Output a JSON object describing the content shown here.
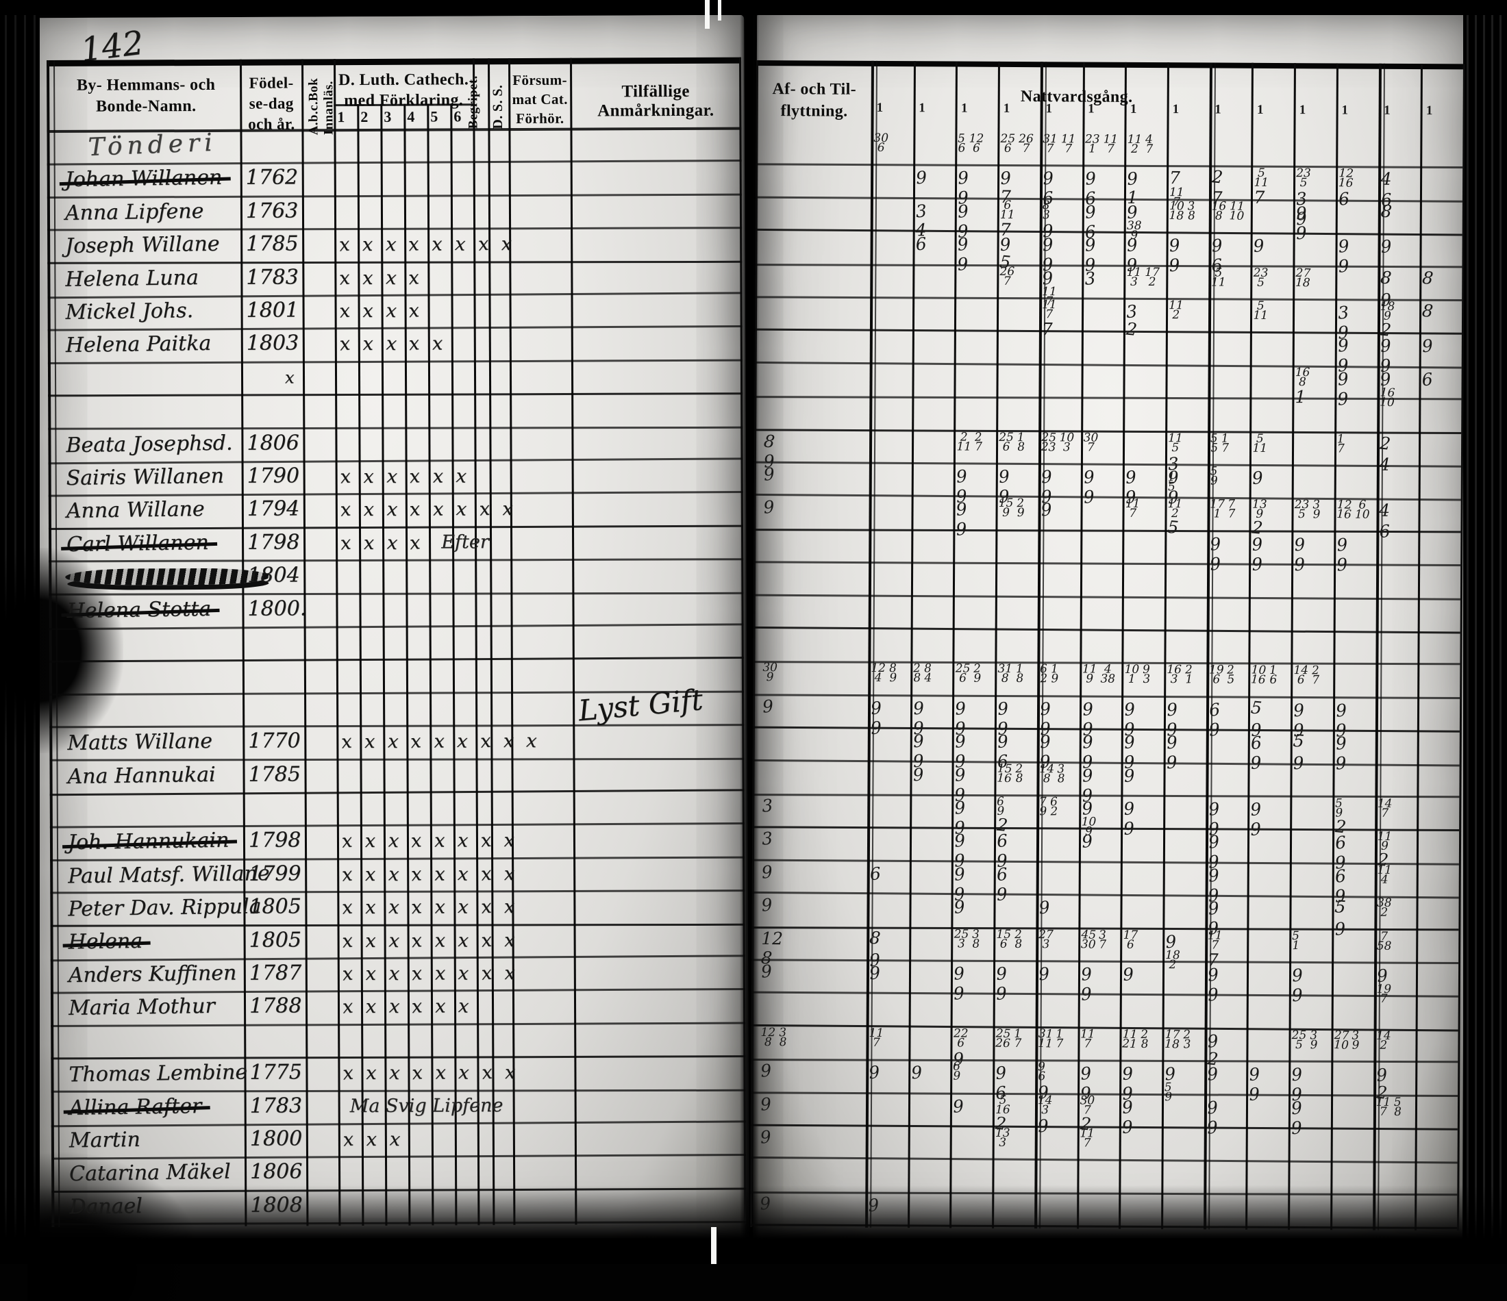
{
  "left_page": {
    "page_number": "142",
    "village_header": "Tönderi",
    "columns": {
      "names_line1": "By- Hemmans- och",
      "names_line2": "Bonde-Namn.",
      "birth_line1": "Födel-",
      "birth_line2": "se-dag",
      "birth_line3": "och år.",
      "abc_line1": "A.b.c.Bok",
      "abc_line2": "Innanläs.",
      "catechism_line1": "D. Luth. Cathech.",
      "catechism_line2": "med Förklaring.",
      "begripet": "Begripet.",
      "dss": "D. S. S.",
      "forsummat_line1": "Försum-",
      "forsummat_line2": "mat Cat.",
      "forsummat_line3": "Förhör.",
      "remarks": "Tilfällige Anmårkningar."
    },
    "catechism_subcolumns": [
      "1",
      "2",
      "3",
      "4",
      "5",
      "6"
    ],
    "rows": [
      {
        "village": "Tönderi"
      },
      {
        "name": "Johan Willanen",
        "year": "1762",
        "struck": true
      },
      {
        "name": "Anna Lipfene",
        "year": "1763"
      },
      {
        "name": "Joseph Willane",
        "year": "1785",
        "x": 8
      },
      {
        "name": "Helena Luna",
        "year": "1783",
        "x": 4
      },
      {
        "name": "Mickel Johs.",
        "year": "1801",
        "x": 4
      },
      {
        "name": "Helena Paitka",
        "year": "1803",
        "x": 5
      },
      {
        "year_mark": "x"
      },
      {},
      {
        "name": "Beata Josephsd.",
        "year": "1806"
      },
      {
        "name": "Sairis Willanen",
        "year": "1790",
        "x": 6
      },
      {
        "name": "Anna Willane",
        "year": "1794",
        "x": 8
      },
      {
        "name": "Carl Willanen",
        "year": "1798",
        "struck": true,
        "x": 4,
        "note": "Efter"
      },
      {
        "scribble": true,
        "year": "1804"
      },
      {
        "name": "Helena Stotta",
        "year": "1800.",
        "struck": true
      },
      {},
      {},
      {
        "remark": "Lyst Gift"
      },
      {
        "name": "Matts Willane",
        "year": "1770",
        "x": 9
      },
      {
        "name": "Ana Hannukai",
        "year": "1785"
      },
      {},
      {
        "name": "Joh. Hannukain",
        "year": "1798",
        "struck": true,
        "x": 8
      },
      {
        "name": "Paul Matsf. Willane",
        "year": "1799",
        "x": 8
      },
      {
        "name": "Peter Dav. Rippula",
        "year": "1805",
        "x": 8
      },
      {
        "name": "Helena",
        "year": "1805",
        "struck": true,
        "x": 8
      },
      {
        "name": "Anders Kuffinen",
        "year": "1787",
        "x": 8
      },
      {
        "name": "Maria Mothur",
        "year": "1788",
        "x": 6
      },
      {},
      {
        "name": "Thomas Lembine",
        "year": "1775",
        "x": 8
      },
      {
        "name": "Allina Rafter",
        "year": "1783",
        "struck": true,
        "note": "Ma Svig Lipfene"
      },
      {
        "name": "Martin",
        "year": "1800",
        "x": 3
      },
      {
        "name": "Catarina Mäkel",
        "year": "1806"
      },
      {
        "name": "Danael",
        "year": "1808"
      }
    ]
  },
  "right_page": {
    "moves_line1": "Af- och Til-",
    "moves_line2": "flyttning.",
    "communion": "Nattvardsgång.",
    "column_tick": "1",
    "rows": [
      {
        "cells": [
          [
            0,
            "30/6"
          ],
          [
            2,
            "5/6 12/6"
          ],
          [
            3,
            "25/6 26/7"
          ],
          [
            4,
            "31/7 11/7"
          ],
          [
            5,
            "23/1 11/7"
          ],
          [
            6,
            "11/2 4/7"
          ]
        ]
      },
      {
        "cells": [
          [
            1,
            "9"
          ],
          [
            2,
            "9 9"
          ],
          [
            3,
            "9 7"
          ],
          [
            4,
            "9 6"
          ],
          [
            5,
            "9 6"
          ],
          [
            6,
            "9 1"
          ],
          [
            7,
            "7 11/7"
          ],
          [
            8,
            "2 7"
          ],
          [
            9,
            "5/11 7"
          ],
          [
            10,
            "23/5 3 9"
          ],
          [
            11,
            "12/16 6"
          ],
          [
            12,
            "4 6"
          ]
        ]
      },
      {
        "cells": [
          [
            1,
            "3 4"
          ],
          [
            2,
            "9 9"
          ],
          [
            3,
            "6/11 7"
          ],
          [
            4,
            "8/3 9"
          ],
          [
            5,
            "9 6"
          ],
          [
            6,
            "9 38/9"
          ],
          [
            7,
            "10/18 3/8"
          ],
          [
            8,
            "16/8 11/10"
          ],
          [
            10,
            "9 9"
          ],
          [
            12,
            "8"
          ]
        ]
      },
      {
        "cells": [
          [
            1,
            "6"
          ],
          [
            2,
            "9 9"
          ],
          [
            3,
            "9 5"
          ],
          [
            4,
            "9 9"
          ],
          [
            5,
            "9 9"
          ],
          [
            6,
            "9 9"
          ],
          [
            7,
            "9 9"
          ],
          [
            8,
            "9 6"
          ],
          [
            9,
            "9"
          ],
          [
            11,
            "9 9"
          ],
          [
            12,
            "9"
          ]
        ]
      },
      {
        "cells": [
          [
            3,
            "26/7"
          ],
          [
            4,
            "9 11/7"
          ],
          [
            5,
            "3"
          ],
          [
            6,
            "11/3 17/2"
          ],
          [
            8,
            "5/11"
          ],
          [
            9,
            "23/5"
          ],
          [
            10,
            "27/18"
          ],
          [
            12,
            "8 9"
          ],
          [
            13,
            "8"
          ]
        ]
      },
      {
        "cells": [
          [
            4,
            "11/7 7"
          ],
          [
            6,
            "3 2"
          ],
          [
            7,
            "11/2"
          ],
          [
            9,
            "5/11"
          ],
          [
            11,
            "3 9"
          ],
          [
            12,
            "18/9 2"
          ],
          [
            13,
            "8"
          ]
        ]
      },
      {
        "cells": [
          [
            11,
            "9 9"
          ],
          [
            12,
            "9 9"
          ],
          [
            13,
            "9"
          ]
        ]
      },
      {
        "cells": [
          [
            10,
            "16/8 1"
          ],
          [
            11,
            "9 9"
          ],
          [
            12,
            "9 16/10"
          ],
          [
            13,
            "6"
          ]
        ]
      },
      {
        "cells": []
      },
      {
        "af": "8 9",
        "cells": [
          [
            2,
            "2/11 2/7"
          ],
          [
            3,
            "25/6 1/8"
          ],
          [
            4,
            "25/23 10/3"
          ],
          [
            5,
            "30/7"
          ],
          [
            7,
            "11/5 3 1/5"
          ],
          [
            8,
            "5/5 1/7"
          ],
          [
            9,
            "5/11"
          ],
          [
            11,
            "1/7"
          ],
          [
            12,
            "2 4"
          ]
        ]
      },
      {
        "af": "9",
        "cells": [
          [
            2,
            "9 9"
          ],
          [
            3,
            "9 9"
          ],
          [
            4,
            "9 9"
          ],
          [
            5,
            "9 9"
          ],
          [
            6,
            "9 9"
          ],
          [
            7,
            "9 9"
          ],
          [
            8,
            "5/9"
          ],
          [
            9,
            "9"
          ]
        ]
      },
      {
        "af": "9",
        "cells": [
          [
            2,
            "9 9"
          ],
          [
            3,
            "15/9 2/9"
          ],
          [
            4,
            "9"
          ],
          [
            6,
            "11/7"
          ],
          [
            7,
            "11/2 5"
          ],
          [
            8,
            "17/1 7/7"
          ],
          [
            9,
            "13/9 2"
          ],
          [
            10,
            "23/5 3/9"
          ],
          [
            11,
            "12/16 6/10"
          ],
          [
            12,
            "4 6"
          ]
        ]
      },
      {
        "cells": [
          [
            8,
            "9 9"
          ],
          [
            9,
            "9 9"
          ],
          [
            10,
            "9 9"
          ],
          [
            11,
            "9 9"
          ]
        ]
      },
      {
        "cells": []
      },
      {
        "cells": []
      },
      {
        "cells": []
      },
      {
        "af": "30/9",
        "cells": [
          [
            0,
            "12/4 8/9"
          ],
          [
            1,
            "2/8 8/4"
          ],
          [
            2,
            "25/6 2/9"
          ],
          [
            3,
            "31/8 1/8"
          ],
          [
            4,
            "6/2 1/9"
          ],
          [
            5,
            "11/9 4/38"
          ],
          [
            6,
            "10/1 9/3"
          ],
          [
            7,
            "16/3 2/1"
          ],
          [
            8,
            "19/6 2/5"
          ],
          [
            9,
            "10/16 1/6"
          ],
          [
            10,
            "14/6 2/7"
          ]
        ]
      },
      {
        "af": "9",
        "cells": [
          [
            0,
            "9 9"
          ],
          [
            1,
            "9 9"
          ],
          [
            2,
            "9 9"
          ],
          [
            3,
            "9 9"
          ],
          [
            4,
            "9 9"
          ],
          [
            5,
            "9 9"
          ],
          [
            6,
            "9 9"
          ],
          [
            7,
            "9 9"
          ],
          [
            8,
            "6 9"
          ],
          [
            9,
            "5 9"
          ],
          [
            10,
            "9 9"
          ],
          [
            11,
            "9 9"
          ]
        ]
      },
      {
        "cells": [
          [
            1,
            "9 9"
          ],
          [
            2,
            "9 9"
          ],
          [
            3,
            "9 6"
          ],
          [
            4,
            "9 9"
          ],
          [
            5,
            "9 9"
          ],
          [
            6,
            "9 9"
          ],
          [
            7,
            "9 9"
          ],
          [
            9,
            "6 9"
          ],
          [
            10,
            "5 9"
          ],
          [
            11,
            "9 9"
          ]
        ]
      },
      {
        "cells": [
          [
            1,
            "9"
          ],
          [
            2,
            "9 9"
          ],
          [
            3,
            "15/16 2/8"
          ],
          [
            4,
            "14/8 3/8"
          ],
          [
            5,
            "9 9"
          ],
          [
            6,
            "9"
          ]
        ]
      },
      {
        "af": "3",
        "cells": [
          [
            2,
            "9 9"
          ],
          [
            3,
            "6/9 2"
          ],
          [
            4,
            "7/9 6/2"
          ],
          [
            5,
            "9 10/9"
          ],
          [
            6,
            "9 9"
          ],
          [
            8,
            "9 9"
          ],
          [
            9,
            "9 9"
          ],
          [
            11,
            "5/9 2"
          ],
          [
            12,
            "14/7"
          ]
        ]
      },
      {
        "af": "3",
        "cells": [
          [
            2,
            "9 9"
          ],
          [
            3,
            "6 9"
          ],
          [
            5,
            "9"
          ],
          [
            8,
            "9 9"
          ],
          [
            11,
            "6 9"
          ],
          [
            12,
            "11/9 2"
          ]
        ]
      },
      {
        "af": "9",
        "cells": [
          [
            0,
            "6"
          ],
          [
            2,
            "9 9"
          ],
          [
            3,
            "6 9"
          ],
          [
            8,
            "9 9"
          ],
          [
            11,
            "6 9"
          ],
          [
            12,
            "11/4"
          ]
        ]
      },
      {
        "af": "9",
        "cells": [
          [
            2,
            "9"
          ],
          [
            4,
            "9"
          ],
          [
            8,
            "9 9"
          ],
          [
            11,
            "5 9"
          ],
          [
            12,
            "38/2"
          ]
        ]
      },
      {
        "af": "12 8",
        "cells": [
          [
            0,
            "8 9"
          ],
          [
            2,
            "25/3 3/8"
          ],
          [
            3,
            "15/6 2/8"
          ],
          [
            4,
            "27/3"
          ],
          [
            5,
            "45/30 3/7"
          ],
          [
            6,
            "17/6"
          ],
          [
            7,
            "9 18/2"
          ],
          [
            8,
            "11/7 7"
          ],
          [
            10,
            "5/1"
          ],
          [
            12,
            "7/58"
          ]
        ]
      },
      {
        "af": "9",
        "cells": [
          [
            0,
            "9"
          ],
          [
            2,
            "9 9"
          ],
          [
            3,
            "9 9"
          ],
          [
            4,
            "9"
          ],
          [
            5,
            "9 9"
          ],
          [
            6,
            "9"
          ],
          [
            8,
            "9 9"
          ],
          [
            10,
            "9 9"
          ],
          [
            12,
            "9 19/7"
          ]
        ]
      },
      {
        "cells": []
      },
      {
        "af": "12/8 3/8",
        "cells": [
          [
            0,
            "11/7"
          ],
          [
            2,
            "22/6 9"
          ],
          [
            3,
            "25/26 1/7"
          ],
          [
            4,
            "31/11 1/7"
          ],
          [
            5,
            "11/7"
          ],
          [
            6,
            "11/21 2/8"
          ],
          [
            7,
            "17/18 2/3"
          ],
          [
            8,
            "9 2"
          ],
          [
            10,
            "25/5 3/9"
          ],
          [
            11,
            "27/10 3/9"
          ],
          [
            12,
            "14/2"
          ]
        ]
      },
      {
        "af": "9",
        "cells": [
          [
            0,
            "9"
          ],
          [
            1,
            "9"
          ],
          [
            2,
            "6/9"
          ],
          [
            3,
            "9 6"
          ],
          [
            4,
            "9/6 9"
          ],
          [
            5,
            "9 9"
          ],
          [
            6,
            "9 9"
          ],
          [
            7,
            "9 5/9"
          ],
          [
            8,
            "9"
          ],
          [
            9,
            "9 9"
          ],
          [
            10,
            "9 9"
          ],
          [
            12,
            "9 2"
          ]
        ]
      },
      {
        "af": "9",
        "cells": [
          [
            2,
            "9"
          ],
          [
            3,
            "5/16 2"
          ],
          [
            4,
            "14/3 9"
          ],
          [
            5,
            "30/7 2"
          ],
          [
            6,
            "9 9"
          ],
          [
            8,
            "9 9"
          ],
          [
            10,
            "9 9"
          ],
          [
            12,
            "11/7 5/8"
          ]
        ]
      },
      {
        "af": "9",
        "cells": [
          [
            3,
            "13/3"
          ],
          [
            5,
            "11/7"
          ]
        ]
      },
      {
        "cells": []
      },
      {
        "af": "9",
        "cells": [
          [
            0,
            "9"
          ]
        ]
      }
    ]
  }
}
